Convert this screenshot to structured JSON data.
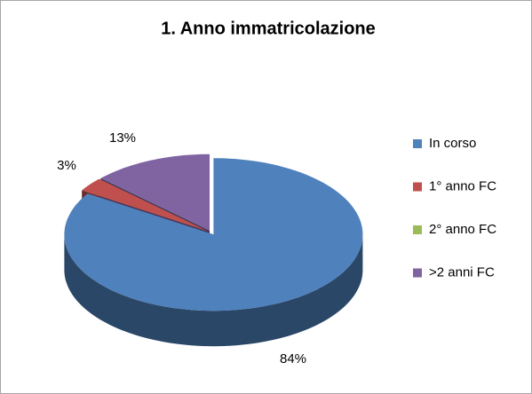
{
  "chart_data": {
    "type": "pie",
    "title": "1. Anno immatricolazione",
    "categories": [
      "In corso",
      "1° anno FC",
      "2° anno FC",
      ">2 anni FC"
    ],
    "values": [
      84,
      3,
      0,
      13
    ],
    "value_labels": [
      "84%",
      "3%",
      null,
      "13%"
    ],
    "colors": [
      "#4f81bd",
      "#c0504d",
      "#9bbb59",
      "#8064a2"
    ],
    "legend": "right"
  }
}
